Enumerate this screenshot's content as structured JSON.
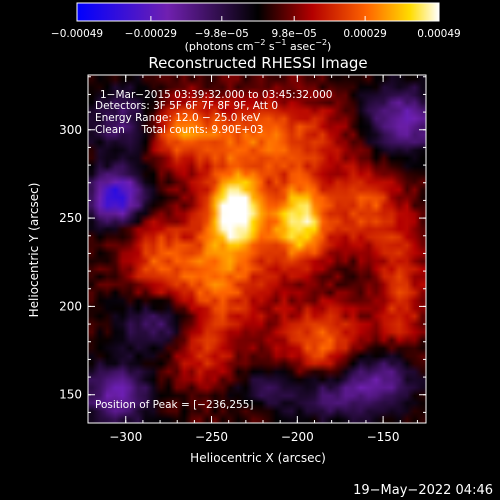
{
  "chart_data": {
    "type": "heatmap",
    "title": "Reconstructed RHESSI Image",
    "xlabel": "Heliocentric X (arcsec)",
    "ylabel": "Heliocentric Y (arcsec)",
    "xlim": [
      -322,
      -125
    ],
    "ylim": [
      134,
      331
    ],
    "xticks": [
      {
        "value": -300,
        "label": "−300"
      },
      {
        "value": -250,
        "label": "−250"
      },
      {
        "value": -200,
        "label": "−200"
      },
      {
        "value": -150,
        "label": "−150"
      }
    ],
    "yticks": [
      {
        "value": 150,
        "label": "150"
      },
      {
        "value": 200,
        "label": "200"
      },
      {
        "value": 250,
        "label": "250"
      },
      {
        "value": 300,
        "label": "300"
      }
    ],
    "colorbar": {
      "range": [
        -0.00049,
        0.00049
      ],
      "ticks": [
        {
          "value": -0.00049,
          "label": "−0.00049"
        },
        {
          "value": -0.00029,
          "label": "−0.00029"
        },
        {
          "value": -9.8e-05,
          "label": "−9.8e−05"
        },
        {
          "value": 9.8e-05,
          "label": "9.8e−05"
        },
        {
          "value": 0.00029,
          "label": "0.00029"
        },
        {
          "value": 0.00049,
          "label": "0.00049"
        }
      ],
      "units_main": "(photons cm",
      "units_exp1": "−2",
      "units_mid": " s",
      "units_exp2": "−1",
      "units_tail": " asec",
      "units_exp3": "−2",
      "units_close": ")"
    },
    "annotations": {
      "time": "1−Mar−2015 03:39:32.000 to 03:45:32.000",
      "detectors": "Detectors: 3F 5F 6F 7F 8F 9F, Att 0",
      "energy": "Energy Range: 12.0 − 25.0 keV",
      "clean": "Clean     Total counts: 9.90E+03",
      "peak": "Position of Peak = [−236,255]"
    },
    "peak": [
      -236,
      255
    ],
    "sources": [
      {
        "x": -236,
        "y": 255,
        "sx": 11,
        "sy": 14,
        "amp": 0.00049
      },
      {
        "x": -198,
        "y": 248,
        "sx": 12,
        "sy": 16,
        "amp": 0.00043
      },
      {
        "x": -250,
        "y": 218,
        "sx": 24,
        "sy": 22,
        "amp": 0.00027
      },
      {
        "x": -220,
        "y": 295,
        "sx": 35,
        "sy": 16,
        "amp": 0.00025
      },
      {
        "x": -185,
        "y": 180,
        "sx": 18,
        "sy": 15,
        "amp": 0.00023
      },
      {
        "x": -258,
        "y": 180,
        "sx": 15,
        "sy": 15,
        "amp": 0.00022
      },
      {
        "x": -270,
        "y": 300,
        "sx": 14,
        "sy": 12,
        "amp": 0.0002
      },
      {
        "x": -160,
        "y": 255,
        "sx": 12,
        "sy": 16,
        "amp": 0.00022
      },
      {
        "x": -140,
        "y": 210,
        "sx": 10,
        "sy": 30,
        "amp": 0.00018
      },
      {
        "x": -285,
        "y": 230,
        "sx": 10,
        "sy": 18,
        "amp": 0.00014
      },
      {
        "x": -305,
        "y": 262,
        "sx": 12,
        "sy": 10,
        "amp": -0.00045
      },
      {
        "x": -140,
        "y": 305,
        "sx": 16,
        "sy": 14,
        "amp": -0.0003
      },
      {
        "x": -275,
        "y": 190,
        "sx": 18,
        "sy": 12,
        "amp": -0.0003
      },
      {
        "x": -305,
        "y": 150,
        "sx": 14,
        "sy": 12,
        "amp": -0.00028
      },
      {
        "x": -150,
        "y": 160,
        "sx": 14,
        "sy": 12,
        "amp": -0.00025
      },
      {
        "x": -180,
        "y": 150,
        "sx": 20,
        "sy": 10,
        "amp": -0.0002
      },
      {
        "x": -300,
        "y": 305,
        "sx": 14,
        "sy": 14,
        "amp": -0.00022
      },
      {
        "x": -220,
        "y": 155,
        "sx": 12,
        "sy": 8,
        "amp": -0.00012
      }
    ]
  },
  "footer": {
    "date": "19−May−2022 04:46"
  }
}
